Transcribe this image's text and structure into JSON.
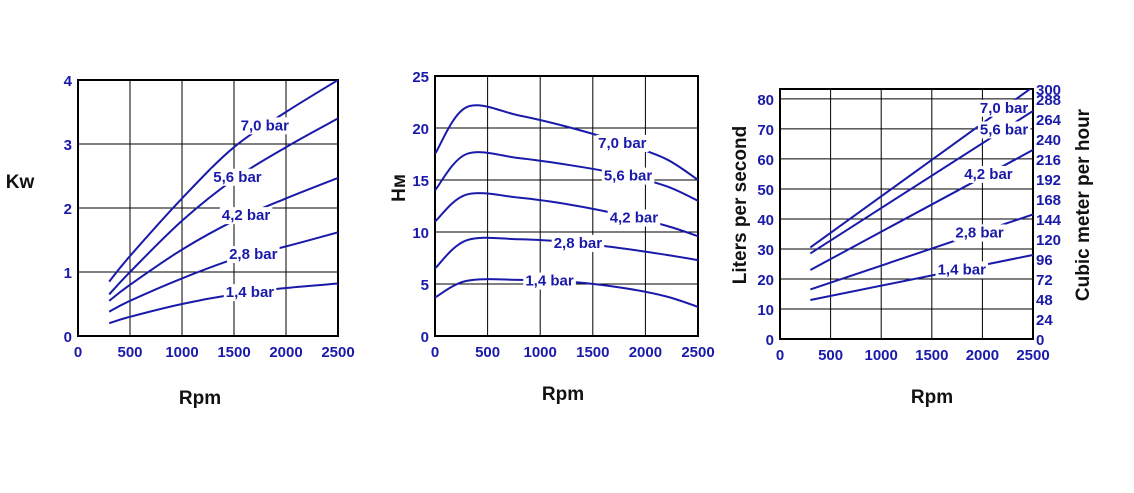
{
  "colors": {
    "curve": "#1a1aaa",
    "tick": "#1a1aaa",
    "frame": "#000000",
    "grid": "#000000",
    "title": "#111111"
  },
  "chart_data": [
    {
      "type": "line",
      "xlabel": "Rpm",
      "ylabel": "Kw",
      "xlim": [
        0,
        2500
      ],
      "ylim": [
        0,
        4
      ],
      "xticks": [
        "0",
        "500",
        "1000",
        "1500",
        "2000",
        "2500"
      ],
      "yticks": [
        "0",
        "1",
        "2",
        "3",
        "4"
      ],
      "grid": true,
      "series": [
        {
          "name": "7,0 bar",
          "x": [
            300,
            500,
            1000,
            1500,
            2000,
            2500
          ],
          "y": [
            0.85,
            1.25,
            2.15,
            2.95,
            3.5,
            4.0
          ]
        },
        {
          "name": "5,6 bar",
          "x": [
            300,
            500,
            1000,
            1500,
            2000,
            2500
          ],
          "y": [
            0.65,
            1.0,
            1.8,
            2.45,
            2.95,
            3.4
          ]
        },
        {
          "name": "4,2 bar",
          "x": [
            300,
            500,
            1000,
            1500,
            2000,
            2500
          ],
          "y": [
            0.55,
            0.8,
            1.35,
            1.8,
            2.15,
            2.47
          ]
        },
        {
          "name": "2,8 bar",
          "x": [
            300,
            500,
            1000,
            1500,
            2000,
            2500
          ],
          "y": [
            0.38,
            0.55,
            0.9,
            1.2,
            1.4,
            1.62
          ]
        },
        {
          "name": "1,4 bar",
          "x": [
            300,
            500,
            1000,
            1500,
            2000,
            2500
          ],
          "y": [
            0.2,
            0.3,
            0.5,
            0.65,
            0.75,
            0.82
          ]
        }
      ]
    },
    {
      "type": "line",
      "xlabel": "Rpm",
      "ylabel": "Hм",
      "xlim": [
        0,
        2500
      ],
      "ylim": [
        0,
        25
      ],
      "xticks": [
        "0",
        "500",
        "1000",
        "1500",
        "2000",
        "2500"
      ],
      "yticks": [
        "0",
        "5",
        "10",
        "15",
        "20",
        "25"
      ],
      "grid": true,
      "series": [
        {
          "name": "7,0 bar",
          "x": [
            0,
            300,
            800,
            1300,
            1800,
            2200,
            2500
          ],
          "y": [
            17.5,
            22.0,
            21.2,
            20.0,
            18.5,
            17.0,
            15.0
          ]
        },
        {
          "name": "5,6 bar",
          "x": [
            0,
            300,
            800,
            1300,
            1800,
            2200,
            2500
          ],
          "y": [
            14.0,
            17.5,
            17.1,
            16.4,
            15.5,
            14.4,
            13.0
          ]
        },
        {
          "name": "4,2 bar",
          "x": [
            0,
            300,
            800,
            1300,
            1800,
            2200,
            2500
          ],
          "y": [
            11.0,
            13.6,
            13.3,
            12.6,
            11.6,
            10.6,
            9.6
          ]
        },
        {
          "name": "2,8 bar",
          "x": [
            0,
            300,
            800,
            1300,
            1800,
            2200,
            2500
          ],
          "y": [
            6.5,
            9.2,
            9.3,
            9.0,
            8.4,
            7.8,
            7.3
          ]
        },
        {
          "name": "1,4 bar",
          "x": [
            0,
            300,
            800,
            1300,
            1800,
            2200,
            2500
          ],
          "y": [
            3.7,
            5.3,
            5.4,
            5.2,
            4.6,
            3.8,
            2.8
          ]
        }
      ]
    },
    {
      "type": "line",
      "xlabel": "Rpm",
      "ylabel": "Liters per second",
      "y2label": "Cubic meter  per hour",
      "xlim": [
        0,
        2500
      ],
      "ylim": [
        0,
        83.3
      ],
      "y2lim": [
        0,
        300
      ],
      "xticks": [
        "0",
        "500",
        "1000",
        "1500",
        "2000",
        "2500"
      ],
      "yticks": [
        "0",
        "10",
        "20",
        "30",
        "40",
        "50",
        "60",
        "70",
        "80"
      ],
      "y2ticks": [
        "0",
        "24",
        "48",
        "72",
        "96",
        "120",
        "144",
        "168",
        "192",
        "216",
        "240",
        "264",
        "288",
        "300"
      ],
      "grid": true,
      "series": [
        {
          "name": "7,0 bar",
          "x": [
            300,
            2500
          ],
          "y": [
            30.5,
            84.0
          ]
        },
        {
          "name": "5,6 bar",
          "x": [
            300,
            2500
          ],
          "y": [
            28.5,
            76.0
          ]
        },
        {
          "name": "4,2 bar",
          "x": [
            300,
            2500
          ],
          "y": [
            23.0,
            63.0
          ]
        },
        {
          "name": "2,8 bar",
          "x": [
            300,
            2500
          ],
          "y": [
            16.5,
            41.5
          ]
        },
        {
          "name": "1,4 bar",
          "x": [
            300,
            2500
          ],
          "y": [
            13.0,
            28.0
          ]
        }
      ]
    }
  ]
}
